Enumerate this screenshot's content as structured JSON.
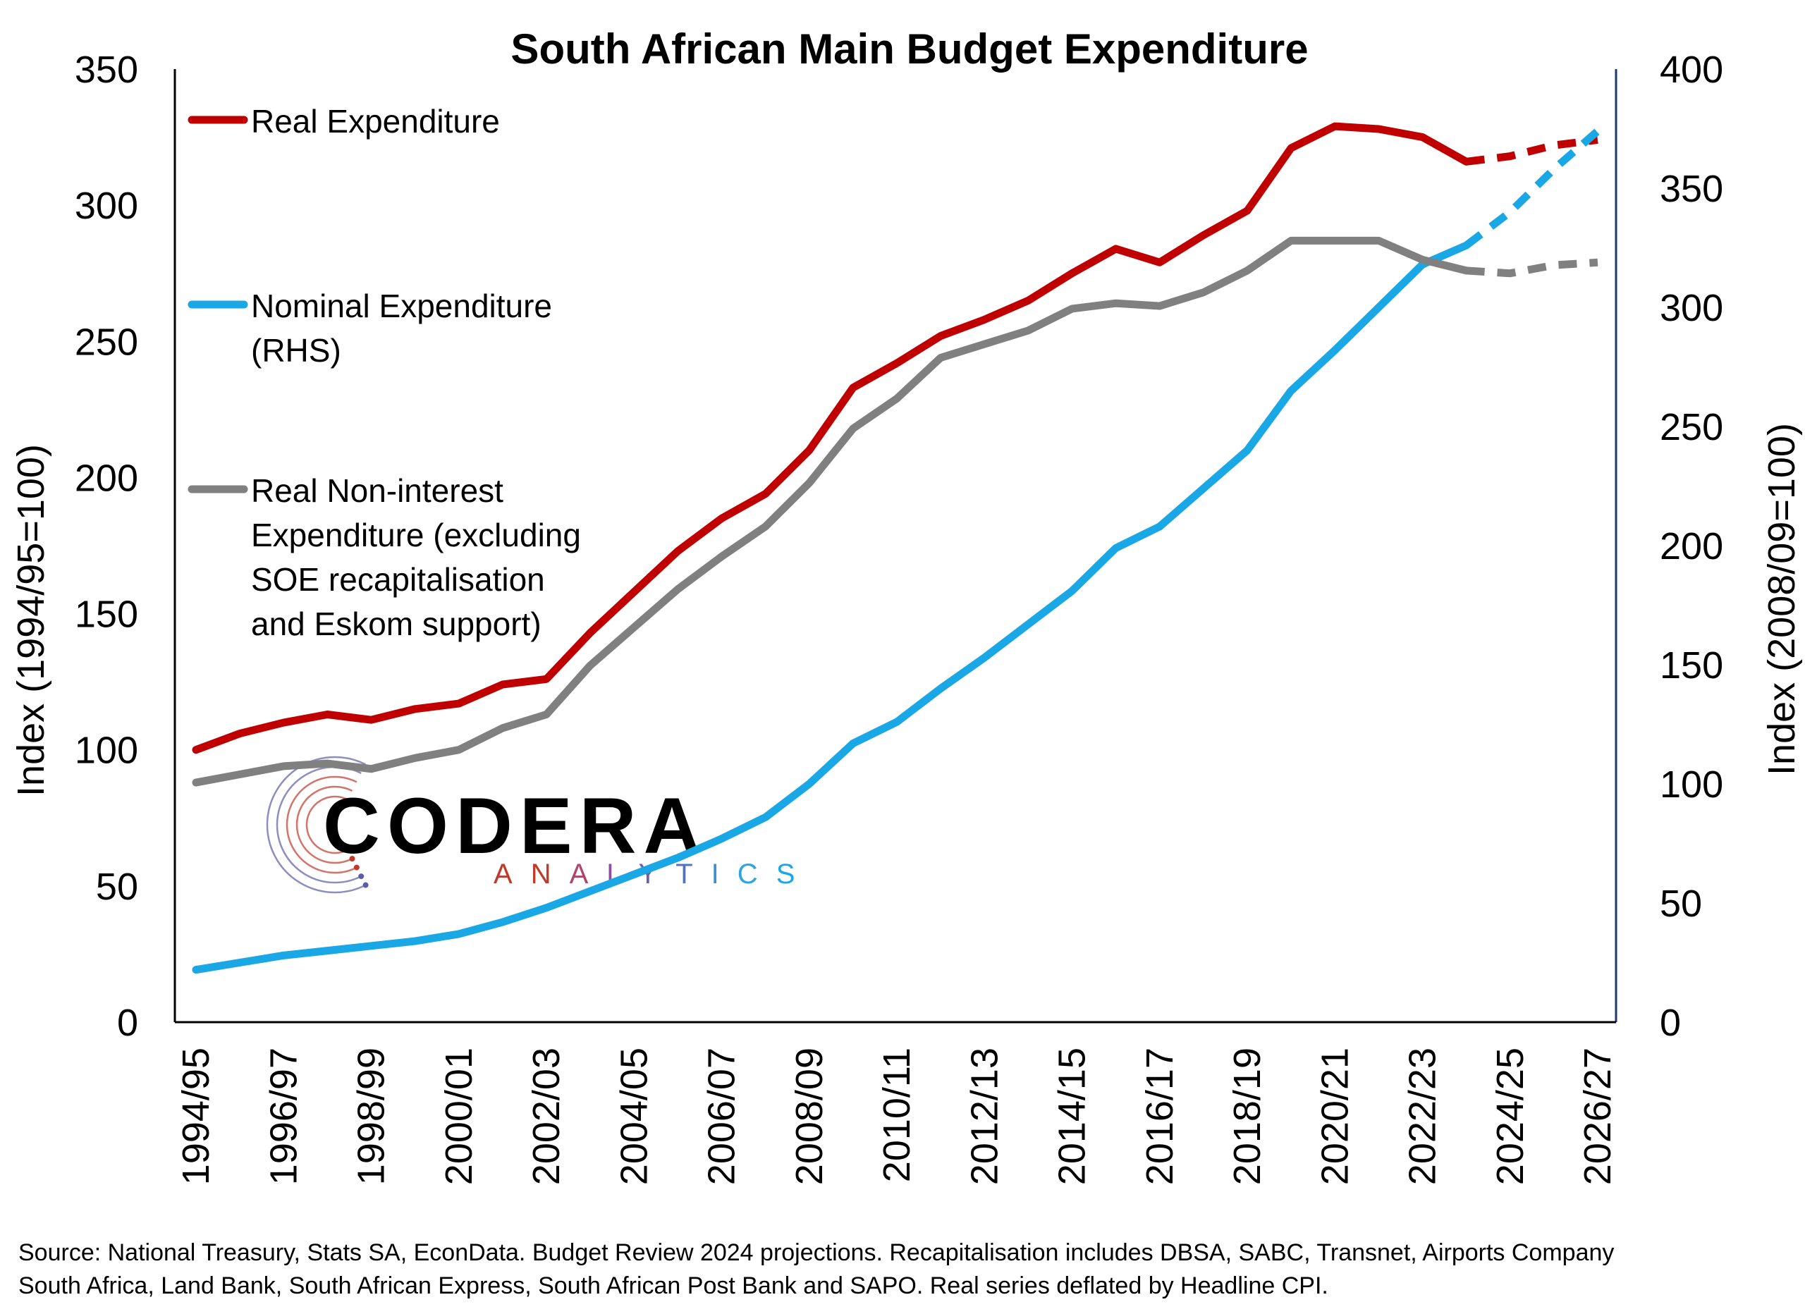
{
  "colors": {
    "real": "#c00000",
    "nominal": "#1aa7e6",
    "noninterest": "#808080",
    "right_axis": "#1f3864",
    "axis": "#000000"
  },
  "logo": {
    "name": "CODERA",
    "tagline": "ANALYTICS"
  },
  "legend": [
    {
      "key": "real",
      "lines": [
        "Real Expenditure"
      ]
    },
    {
      "key": "nominal",
      "lines": [
        "Nominal Expenditure",
        "(RHS)"
      ]
    },
    {
      "key": "noninterest",
      "lines": [
        "Real Non-interest",
        "Expenditure (excluding",
        "SOE recapitalisation",
        "and Eskom support)"
      ]
    }
  ],
  "source_lines": [
    "Source: National Treasury, Stats SA, EconData. Budget Review 2024 projections. Recapitalisation includes DBSA, SABC, Transnet, Airports Company",
    "South Africa, Land Bank, South African Express, South African Post Bank and SAPO. Real series deflated by Headline CPI."
  ],
  "chart_data": {
    "type": "line",
    "title": "South African Main Budget Expenditure",
    "ylabel": "Index (1994/95=100)",
    "y2label": "Index (2008/09=100)",
    "ylim": [
      0,
      350
    ],
    "y2lim": [
      0,
      400
    ],
    "yticks": [
      0,
      50,
      100,
      150,
      200,
      250,
      300,
      350
    ],
    "y2ticks": [
      0,
      50,
      100,
      150,
      200,
      250,
      300,
      350,
      400
    ],
    "grid": false,
    "legend_position": "top-left",
    "x": [
      "1994/95",
      "1995/96",
      "1996/97",
      "1997/98",
      "1998/99",
      "1999/00",
      "2000/01",
      "2001/02",
      "2002/03",
      "2003/04",
      "2004/05",
      "2005/06",
      "2006/07",
      "2007/08",
      "2008/09",
      "2009/10",
      "2010/11",
      "2011/12",
      "2012/13",
      "2013/14",
      "2014/15",
      "2015/16",
      "2016/17",
      "2017/18",
      "2018/19",
      "2019/20",
      "2020/21",
      "2021/22",
      "2022/23",
      "2023/24",
      "2024/25",
      "2025/26",
      "2026/27"
    ],
    "x_tick_labels": [
      "1994/95",
      "1996/97",
      "1998/99",
      "2000/01",
      "2002/03",
      "2004/05",
      "2006/07",
      "2008/09",
      "2010/11",
      "2012/13",
      "2014/15",
      "2016/17",
      "2018/19",
      "2020/21",
      "2022/23",
      "2024/25",
      "2026/27"
    ],
    "projection_start": "2023/24",
    "series": [
      {
        "name": "Real Expenditure",
        "axis": "left",
        "values": [
          100,
          106,
          110,
          113,
          111,
          115,
          117,
          124,
          126,
          143,
          158,
          173,
          185,
          194,
          210,
          233,
          242,
          252,
          258,
          265,
          275,
          284,
          279,
          289,
          298,
          321,
          329,
          328,
          325,
          316,
          318,
          322,
          324
        ]
      },
      {
        "name": "Nominal Expenditure (RHS)",
        "axis": "right",
        "values": [
          22,
          25,
          28,
          30,
          32,
          34,
          37,
          42,
          48,
          55,
          62,
          69,
          77,
          86,
          100,
          117,
          126,
          140,
          153,
          167,
          181,
          199,
          208,
          224,
          240,
          265,
          282,
          300,
          318,
          326,
          340,
          358,
          374
        ]
      },
      {
        "name": "Real Non-interest Expenditure (excluding SOE recapitalisation and Eskom support)",
        "axis": "left",
        "values": [
          88,
          91,
          94,
          95,
          93,
          97,
          100,
          108,
          113,
          131,
          145,
          159,
          171,
          182,
          198,
          218,
          229,
          244,
          249,
          254,
          262,
          264,
          263,
          268,
          276,
          287,
          287,
          287,
          280,
          276,
          275,
          278,
          279
        ]
      }
    ]
  }
}
